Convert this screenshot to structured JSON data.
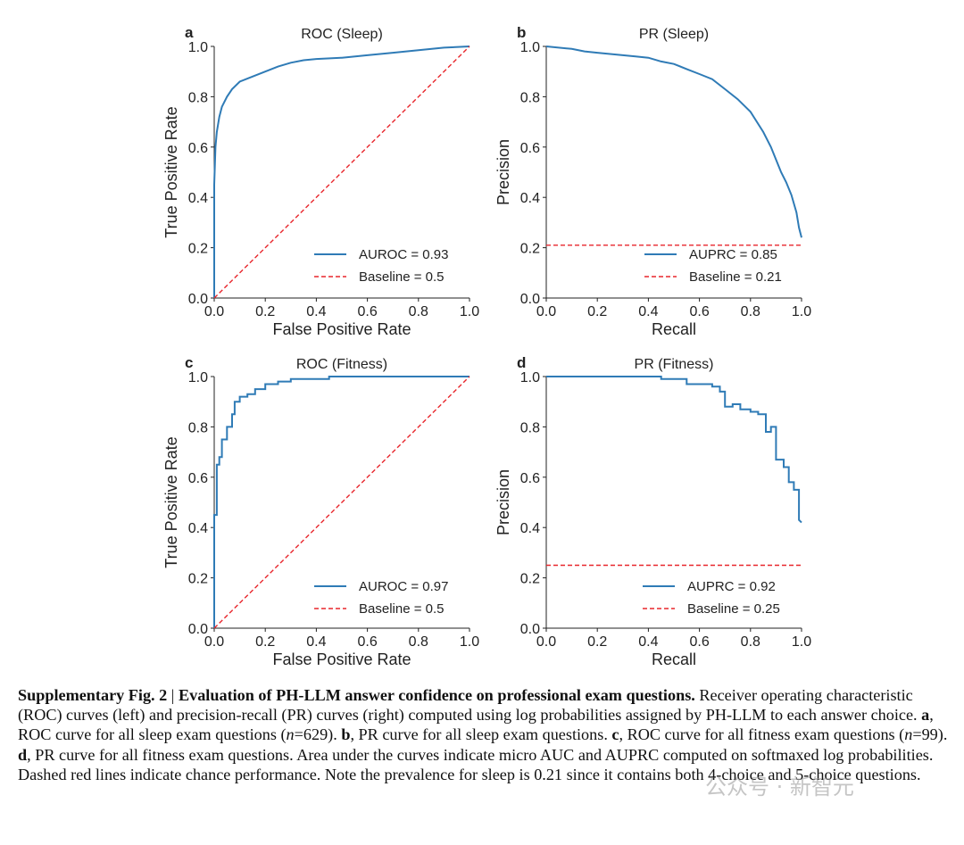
{
  "chart_data": [
    {
      "panel": "a",
      "type": "line",
      "title": "ROC (Sleep)",
      "xlabel": "False Positive Rate",
      "ylabel": "True Positive Rate",
      "xlim": [
        0,
        1
      ],
      "ylim": [
        0,
        1
      ],
      "xticks": [
        "0.0",
        "0.2",
        "0.4",
        "0.6",
        "0.8",
        "1.0"
      ],
      "yticks": [
        "0.0",
        "0.2",
        "0.4",
        "0.6",
        "0.8",
        "1.0"
      ],
      "legend_position": "lower-right",
      "series": [
        {
          "name": "AUROC = 0.93",
          "color": "#2f7bb6",
          "style": "solid",
          "x": [
            0,
            0,
            0.005,
            0.01,
            0.02,
            0.03,
            0.05,
            0.07,
            0.1,
            0.15,
            0.2,
            0.25,
            0.3,
            0.35,
            0.4,
            0.5,
            0.6,
            0.7,
            0.8,
            0.9,
            1.0
          ],
          "y": [
            0,
            0.45,
            0.6,
            0.66,
            0.72,
            0.76,
            0.8,
            0.83,
            0.86,
            0.88,
            0.9,
            0.92,
            0.935,
            0.945,
            0.95,
            0.955,
            0.965,
            0.975,
            0.985,
            0.995,
            1.0
          ]
        },
        {
          "name": "Baseline = 0.5",
          "color": "#e8262c",
          "style": "dashed",
          "x": [
            0,
            1
          ],
          "y": [
            0,
            1
          ]
        }
      ]
    },
    {
      "panel": "b",
      "type": "line",
      "title": "PR (Sleep)",
      "xlabel": "Recall",
      "ylabel": "Precision",
      "xlim": [
        0,
        1
      ],
      "ylim": [
        0,
        1
      ],
      "xticks": [
        "0.0",
        "0.2",
        "0.4",
        "0.6",
        "0.8",
        "1.0"
      ],
      "yticks": [
        "0.0",
        "0.2",
        "0.4",
        "0.6",
        "0.8",
        "1.0"
      ],
      "legend_position": "lower-right",
      "series": [
        {
          "name": "AUPRC = 0.85",
          "color": "#2f7bb6",
          "style": "solid",
          "x": [
            0,
            0.1,
            0.15,
            0.2,
            0.25,
            0.3,
            0.35,
            0.4,
            0.45,
            0.5,
            0.55,
            0.6,
            0.65,
            0.7,
            0.75,
            0.8,
            0.85,
            0.88,
            0.9,
            0.92,
            0.94,
            0.96,
            0.98,
            0.99,
            1.0
          ],
          "y": [
            1.0,
            0.99,
            0.98,
            0.975,
            0.97,
            0.965,
            0.96,
            0.955,
            0.94,
            0.93,
            0.91,
            0.89,
            0.87,
            0.83,
            0.79,
            0.74,
            0.66,
            0.6,
            0.55,
            0.5,
            0.46,
            0.41,
            0.34,
            0.28,
            0.24
          ]
        },
        {
          "name": "Baseline = 0.21",
          "color": "#e8262c",
          "style": "dashed",
          "x": [
            0,
            1
          ],
          "y": [
            0.21,
            0.21
          ]
        }
      ]
    },
    {
      "panel": "c",
      "type": "line",
      "title": "ROC (Fitness)",
      "xlabel": "False Positive Rate",
      "ylabel": "True Positive Rate",
      "xlim": [
        0,
        1
      ],
      "ylim": [
        0,
        1
      ],
      "xticks": [
        "0.0",
        "0.2",
        "0.4",
        "0.6",
        "0.8",
        "1.0"
      ],
      "yticks": [
        "0.0",
        "0.2",
        "0.4",
        "0.6",
        "0.8",
        "1.0"
      ],
      "legend_position": "lower-right",
      "series": [
        {
          "name": "AUROC = 0.97",
          "color": "#2f7bb6",
          "style": "solid",
          "x": [
            0,
            0,
            0.01,
            0.01,
            0.02,
            0.02,
            0.03,
            0.03,
            0.05,
            0.05,
            0.07,
            0.07,
            0.08,
            0.08,
            0.1,
            0.1,
            0.13,
            0.13,
            0.16,
            0.16,
            0.2,
            0.2,
            0.25,
            0.25,
            0.3,
            0.3,
            0.45,
            0.45,
            1.0
          ],
          "y": [
            0,
            0.45,
            0.45,
            0.65,
            0.65,
            0.68,
            0.68,
            0.75,
            0.75,
            0.8,
            0.8,
            0.85,
            0.85,
            0.9,
            0.9,
            0.92,
            0.92,
            0.93,
            0.93,
            0.95,
            0.95,
            0.97,
            0.97,
            0.98,
            0.98,
            0.99,
            0.99,
            1.0,
            1.0
          ]
        },
        {
          "name": "Baseline = 0.5",
          "color": "#e8262c",
          "style": "dashed",
          "x": [
            0,
            1
          ],
          "y": [
            0,
            1
          ]
        }
      ]
    },
    {
      "panel": "d",
      "type": "line",
      "title": "PR (Fitness)",
      "xlabel": "Recall",
      "ylabel": "Precision",
      "xlim": [
        0,
        1
      ],
      "ylim": [
        0,
        1
      ],
      "xticks": [
        "0.0",
        "0.2",
        "0.4",
        "0.6",
        "0.8",
        "1.0"
      ],
      "yticks": [
        "0.0",
        "0.2",
        "0.4",
        "0.6",
        "0.8",
        "1.0"
      ],
      "legend_position": "lower-right",
      "series": [
        {
          "name": "AUPRC = 0.92",
          "color": "#2f7bb6",
          "style": "solid",
          "x": [
            0,
            0.45,
            0.45,
            0.55,
            0.55,
            0.65,
            0.65,
            0.68,
            0.68,
            0.7,
            0.7,
            0.73,
            0.73,
            0.76,
            0.76,
            0.8,
            0.8,
            0.83,
            0.83,
            0.86,
            0.86,
            0.88,
            0.88,
            0.9,
            0.9,
            0.93,
            0.93,
            0.95,
            0.95,
            0.97,
            0.97,
            0.99,
            0.99,
            1.0
          ],
          "y": [
            1.0,
            1.0,
            0.99,
            0.99,
            0.97,
            0.97,
            0.96,
            0.96,
            0.94,
            0.94,
            0.88,
            0.88,
            0.89,
            0.89,
            0.87,
            0.87,
            0.86,
            0.86,
            0.85,
            0.85,
            0.78,
            0.78,
            0.8,
            0.8,
            0.67,
            0.67,
            0.64,
            0.64,
            0.58,
            0.58,
            0.55,
            0.55,
            0.43,
            0.42
          ]
        },
        {
          "name": "Baseline = 0.25",
          "color": "#e8262c",
          "style": "dashed",
          "x": [
            0,
            1
          ],
          "y": [
            0.25,
            0.25
          ]
        }
      ]
    }
  ],
  "caption": {
    "fig_label": "Supplementary Fig. 2",
    "separator": " | ",
    "fig_title": "Evaluation of PH-LLM answer confidence on professional exam questions.",
    "s1": " Receiver operating characteristic (ROC) curves (left) and precision-recall (PR) curves (right) computed using log probabilities assigned by PH-LLM to each answer choice. ",
    "a": "a",
    "s2": ", ROC curve for all sleep exam questions (",
    "n_var1": "n",
    "s3": "=629). ",
    "b": "b",
    "s4": ", PR curve for all sleep exam questions. ",
    "c": "c",
    "s5": ", ROC curve for all fitness exam questions (",
    "n_var2": "n",
    "s6": "=99). ",
    "d": "d",
    "s7": ", PR curve for all fitness exam questions. Area under the curves indicate micro AUC and AUPRC computed on softmaxed log probabilities. Dashed red lines indicate chance performance. Note the prevalence for sleep is 0.21 since it contains both 4-choice and 5-choice questions."
  },
  "watermark": "公众号 · 新智元"
}
